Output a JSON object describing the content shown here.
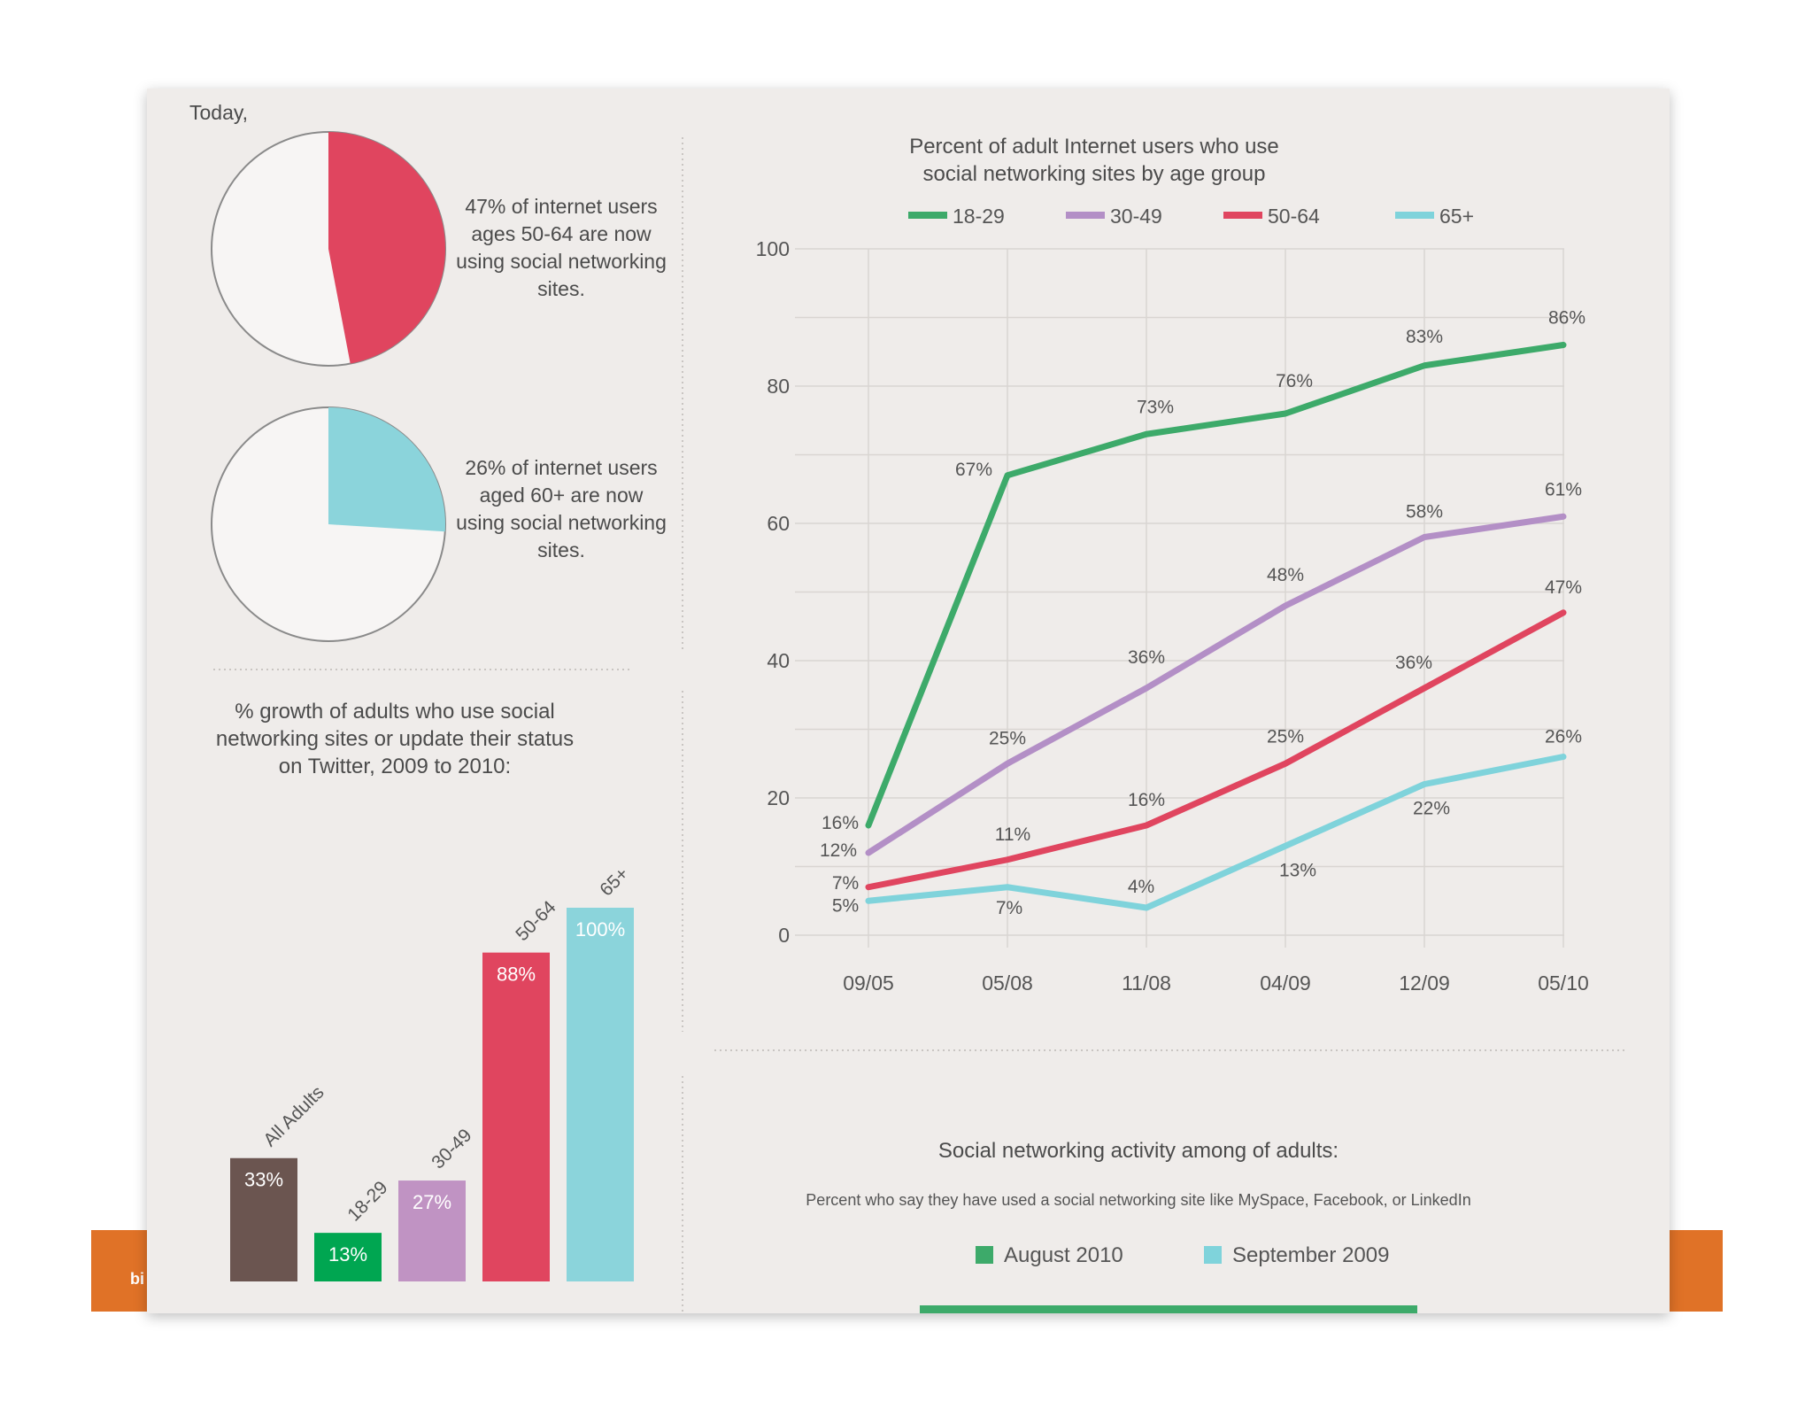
{
  "footer": {
    "text": "bi"
  },
  "pies": {
    "today_label": "Today,",
    "items": [
      {
        "percent": 47,
        "color": "#e0455f",
        "text": "47% of internet users ages 50-64 are now using social networking sites."
      },
      {
        "percent": 26,
        "color": "#8bd4db",
        "text": "26% of internet users aged 60+ are now using social networking sites."
      }
    ]
  },
  "chart_data": [
    {
      "type": "bar",
      "title": "% growth of adults who use social networking sites or update their status on Twitter, 2009 to 2010:",
      "categories": [
        "All Adults",
        "18-29",
        "30-49",
        "50-64",
        "65+"
      ],
      "values": [
        33,
        13,
        27,
        88,
        100
      ],
      "value_labels": [
        "33%",
        "13%",
        "27%",
        "88%",
        "100%"
      ],
      "colors": [
        "#6b5550",
        "#00a651",
        "#c093c3",
        "#e0455f",
        "#8bd4db"
      ],
      "ylim": [
        0,
        100
      ]
    },
    {
      "type": "line",
      "title": "Percent of adult Internet users who use social networking sites by age group",
      "x": [
        "09/05",
        "05/08",
        "11/08",
        "04/09",
        "12/09",
        "05/10"
      ],
      "ylim": [
        0,
        100
      ],
      "yticks": [
        0,
        20,
        40,
        60,
        80,
        100
      ],
      "series": [
        {
          "name": "18-29",
          "color": "#3daa6a",
          "values": [
            16,
            67,
            73,
            76,
            83,
            86
          ],
          "labels": [
            "16%",
            "67%",
            "73%",
            "76%",
            "83%",
            "86%"
          ]
        },
        {
          "name": "30-49",
          "color": "#b38fc6",
          "values": [
            12,
            25,
            36,
            48,
            58,
            61
          ],
          "labels": [
            "12%",
            "25%",
            "36%",
            "48%",
            "58%",
            "61%"
          ]
        },
        {
          "name": "50-64",
          "color": "#e0455f",
          "values": [
            7,
            11,
            16,
            25,
            36,
            47
          ],
          "labels": [
            "7%",
            "11%",
            "16%",
            "25%",
            "36%",
            "47%"
          ]
        },
        {
          "name": "65+",
          "color": "#7fd3db",
          "values": [
            5,
            7,
            4,
            13,
            22,
            26
          ],
          "labels": [
            "5%",
            "7%",
            "4%",
            "13%",
            "22%",
            "26%"
          ]
        }
      ]
    }
  ],
  "activity": {
    "title": "Social networking activity among of adults:",
    "subtitle": "Percent who say they have used a social networking site like MySpace, Facebook, or LinkedIn",
    "legend": [
      {
        "label": "August 2010",
        "color": "#3daa6a"
      },
      {
        "label": "September 2009",
        "color": "#7fd3db"
      }
    ]
  }
}
